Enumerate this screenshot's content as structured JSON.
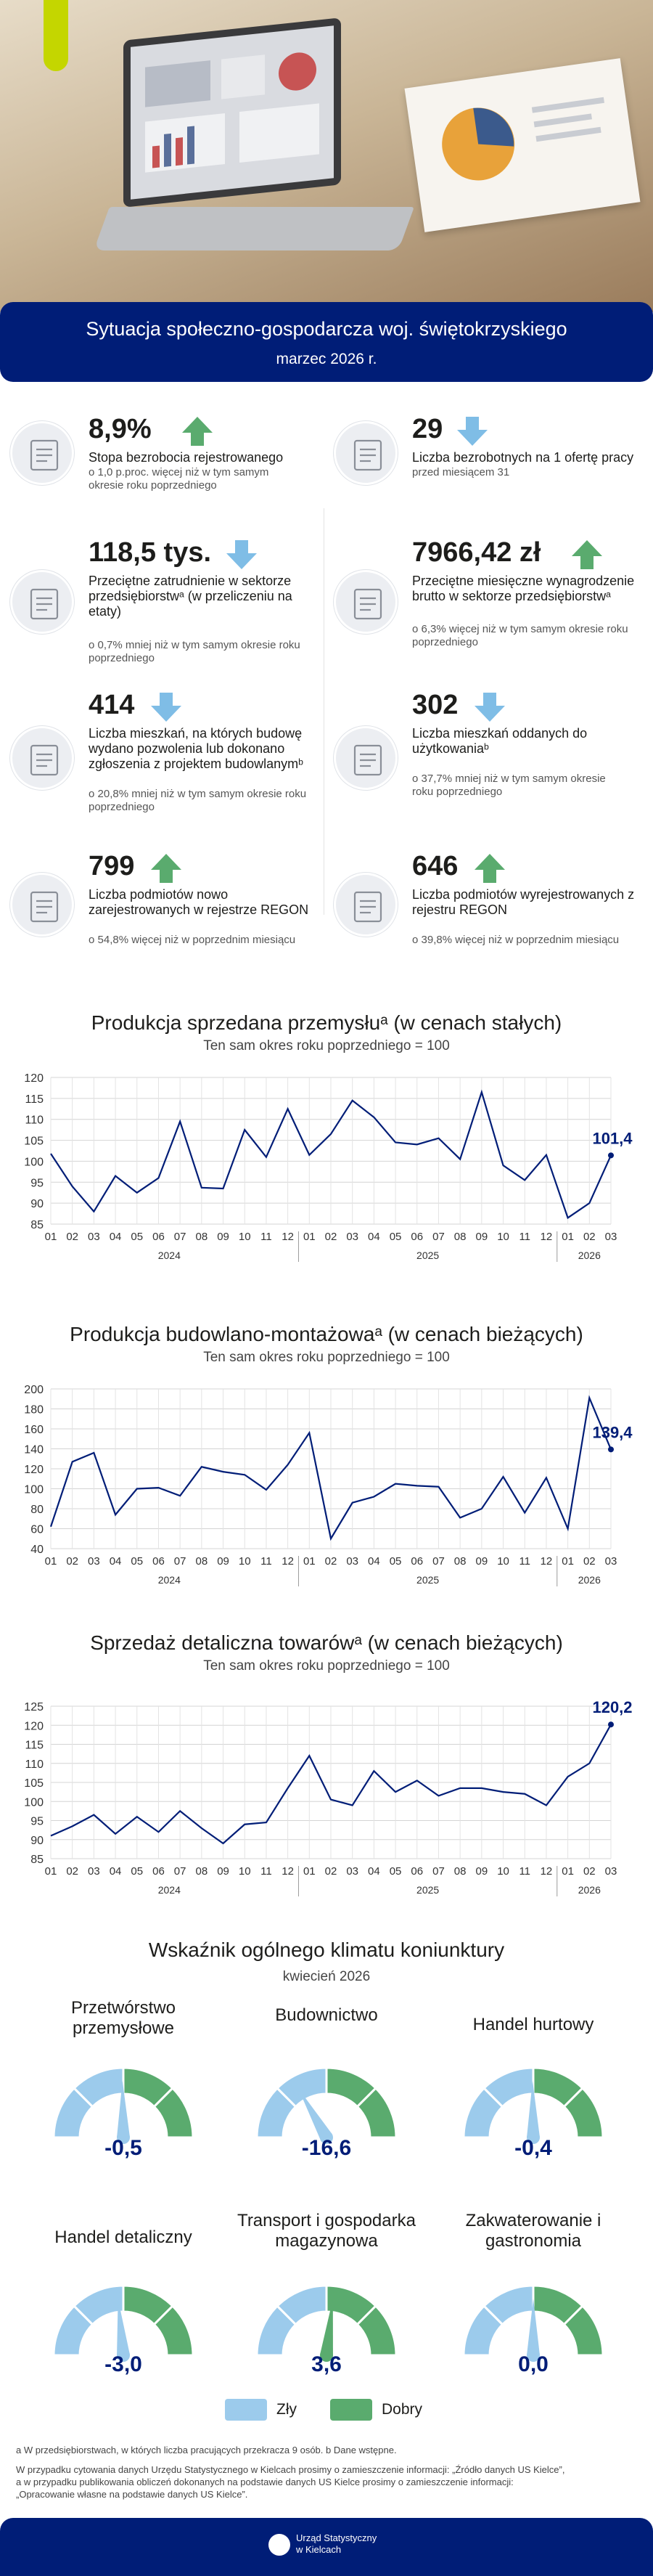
{
  "header": {
    "title": "Sytuacja społeczno-gospodarcza woj. świętokrzyskiego",
    "period": "marzec 2026 r."
  },
  "colors": {
    "navy": "#001d77",
    "up": "#5aab6e",
    "down": "#7fbde6",
    "bad": "#9ccbec",
    "good": "#5aab6e",
    "accent": "#c4d600"
  },
  "indicators": [
    {
      "value": "8,9%",
      "label": "Stopa bezrobocia rejestrowanego",
      "note": "o 1,0 p.proc. więcej niż w tym samym okresie roku poprzedniego",
      "trend": "up",
      "icon": "chart-people-icon"
    },
    {
      "value": "29",
      "label": "Liczba bezrobotnych na 1 ofertę pracy",
      "note": "przed miesiącem 31",
      "trend": "down",
      "icon": "job-offer-icon"
    },
    {
      "value": "118,5 tys.",
      "label": "Przeciętne zatrudnienie w sektorze przedsiębiorstwᵃ (w przeliczeniu na etaty)",
      "note": "o 0,7% mniej niż w tym samym okresie roku poprzedniego",
      "trend": "down",
      "icon": "people-icon"
    },
    {
      "value": "7966,42 zł",
      "label": "Przeciętne miesięczne wynagrodzenie brutto w sektorze przedsiębiorstwᵃ",
      "note": "o 6,3% więcej niż w tym samym okresie roku poprzedniego",
      "trend": "up",
      "icon": "salary-icon"
    },
    {
      "value": "414",
      "label": "Liczba mieszkań, na których budowę wydano pozwolenia lub dokonano zgłoszenia z projektem budowlanymᵇ",
      "note": "o 20,8% mniej niż w tym samym okresie roku poprzedniego",
      "trend": "down",
      "icon": "house-permit-icon"
    },
    {
      "value": "302",
      "label": "Liczba mieszkań oddanych do użytkowaniaᵇ",
      "note": "o 37,7% mniej niż w tym samym okresie roku poprzedniego",
      "trend": "down",
      "icon": "house-icon"
    },
    {
      "value": "799",
      "label": "Liczba podmiotów nowo zarejestrowanych w rejestrze REGON",
      "note": "o 54,8% więcej niż w poprzednim miesiącu",
      "trend": "up",
      "icon": "register-icon"
    },
    {
      "value": "646",
      "label": "Liczba podmiotów wyrejestrowanych z rejestru REGON",
      "note": "o 39,8% więcej niż w poprzednim miesiącu",
      "trend": "up",
      "icon": "deregister-icon"
    }
  ],
  "chart_data": [
    {
      "type": "line",
      "title": "Produkcja sprzedana przemysłuᵃ (w cenach stałych)",
      "subtitle": "Ten sam okres roku poprzedniego = 100",
      "x": [
        "01",
        "02",
        "03",
        "04",
        "05",
        "06",
        "07",
        "08",
        "09",
        "10",
        "11",
        "12",
        "01",
        "02",
        "03",
        "04",
        "05",
        "06",
        "07",
        "08",
        "09",
        "10",
        "11",
        "12",
        "01",
        "02",
        "03"
      ],
      "year_labels": [
        "2024",
        "2025",
        "2026"
      ],
      "values": [
        101.8,
        94,
        88,
        96.5,
        92.5,
        96,
        109.5,
        93.7,
        93.5,
        107.5,
        101,
        112.5,
        101.5,
        106.5,
        114.5,
        110.5,
        104.5,
        104,
        105.5,
        100.5,
        116.5,
        99,
        95.5,
        101.5,
        86.5,
        90,
        101.4
      ],
      "last_label": "101,4",
      "ylim": [
        85,
        120
      ],
      "yticks": [
        85,
        90,
        95,
        100,
        105,
        110,
        115,
        120
      ],
      "grid": true
    },
    {
      "type": "line",
      "title": "Produkcja budowlano-montażowaᵃ (w cenach bieżących)",
      "subtitle": "Ten sam okres roku poprzedniego = 100",
      "x": [
        "01",
        "02",
        "03",
        "04",
        "05",
        "06",
        "07",
        "08",
        "09",
        "10",
        "11",
        "12",
        "01",
        "02",
        "03",
        "04",
        "05",
        "06",
        "07",
        "08",
        "09",
        "10",
        "11",
        "12",
        "01",
        "02",
        "03"
      ],
      "year_labels": [
        "2024",
        "2025",
        "2026"
      ],
      "values": [
        62,
        127,
        136,
        74,
        100,
        101,
        93,
        122,
        117,
        114,
        99,
        124,
        156,
        50,
        86,
        92,
        105,
        103,
        102,
        71,
        80,
        112,
        76,
        111,
        60,
        191,
        139.4
      ],
      "last_label": "139,4",
      "ylim": [
        40,
        200
      ],
      "yticks": [
        40,
        60,
        80,
        100,
        120,
        140,
        160,
        180,
        200
      ],
      "grid": true
    },
    {
      "type": "line",
      "title": "Sprzedaż detaliczna towarówᵃ (w cenach bieżących)",
      "subtitle": "Ten sam okres roku poprzedniego = 100",
      "x": [
        "01",
        "02",
        "03",
        "04",
        "05",
        "06",
        "07",
        "08",
        "09",
        "10",
        "11",
        "12",
        "01",
        "02",
        "03",
        "04",
        "05",
        "06",
        "07",
        "08",
        "09",
        "10",
        "11",
        "12",
        "01",
        "02",
        "03"
      ],
      "year_labels": [
        "2024",
        "2025",
        "2026"
      ],
      "values": [
        91,
        93.5,
        96.5,
        91.5,
        96,
        92,
        97.5,
        93,
        89,
        94,
        94.5,
        103.5,
        112,
        100.5,
        99,
        108,
        102.5,
        105.5,
        101.5,
        103.5,
        103.5,
        102.5,
        102,
        99,
        106.5,
        110,
        120.2
      ],
      "last_label": "120,2",
      "ylim": [
        85,
        125
      ],
      "yticks": [
        85,
        90,
        95,
        100,
        105,
        110,
        115,
        120,
        125
      ],
      "grid": true
    }
  ],
  "climate": {
    "title": "Wskaźnik ogólnego klimatu koniunktury",
    "period": "kwiecień 2026",
    "gauges": [
      {
        "title": "Przetwórstwo przemysłowe",
        "value": -0.5,
        "label": "-0,5"
      },
      {
        "title": "Budownictwo",
        "value": -16.6,
        "label": "-16,6"
      },
      {
        "title": "Handel hurtowy",
        "value": -0.4,
        "label": "-0,4"
      },
      {
        "title": "Handel detaliczny",
        "value": -3.0,
        "label": "-3,0"
      },
      {
        "title": "Transport i gospodarka magazynowa",
        "value": 3.6,
        "label": "3,6"
      },
      {
        "title": "Zakwaterowanie i gastronomia",
        "value": 0.0,
        "label": "0,0"
      }
    ],
    "legend": {
      "bad": "Zły",
      "good": "Dobry"
    }
  },
  "footnotes": {
    "a": "a W przedsiębiorstwach, w których liczba pracujących przekracza 9 osób. b Dane wstępne.",
    "b": "W przypadku cytowania danych Urzędu Statystycznego w Kielcach prosimy o zamieszczenie informacji: „Źródło danych US Kielce”,",
    "c": "a w przypadku publikowania obliczeń dokonanych na podstawie danych US Kielce prosimy o zamieszczenie informacji:",
    "d": "„Opracowanie własne na podstawie danych US Kielce”."
  },
  "footer": {
    "org1": "Urząd Statystyczny",
    "org2": "w Kielcach"
  }
}
